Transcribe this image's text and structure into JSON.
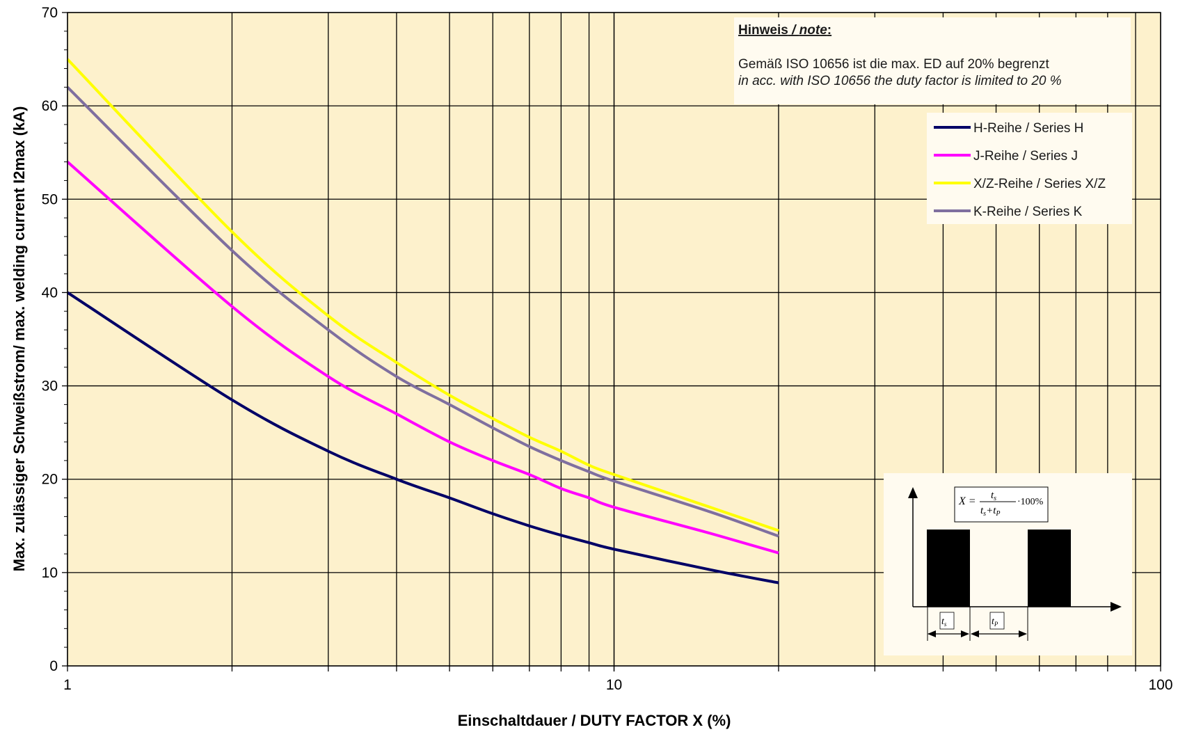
{
  "chart_data": {
    "type": "line",
    "xscale": "log",
    "xlim": [
      1,
      100
    ],
    "ylim": [
      0,
      70
    ],
    "xticks": [
      1,
      10,
      100
    ],
    "yticks": [
      0,
      10,
      20,
      30,
      40,
      50,
      60,
      70
    ],
    "grid": true,
    "xlabel": "Einschaltdauer / DUTY FACTOR X  (%)",
    "ylabel": "Max. zulässiger  Schweißstrom/ max. welding current I2max (kA)",
    "series": [
      {
        "name": "H-Reihe / Series H",
        "color": "#000066",
        "x": [
          1,
          2,
          3,
          4,
          5,
          6,
          7,
          8,
          9,
          10,
          15,
          20
        ],
        "y": [
          40,
          28.5,
          23,
          20,
          18,
          16.3,
          15,
          14,
          13.2,
          12.5,
          10.3,
          8.9
        ]
      },
      {
        "name": "J-Reihe / Series J",
        "color": "#ff00ff",
        "x": [
          1,
          2,
          3,
          4,
          5,
          6,
          7,
          8,
          9,
          10,
          15,
          20
        ],
        "y": [
          54,
          38.5,
          31,
          27,
          24,
          22,
          20.5,
          19,
          18,
          17,
          14.2,
          12.1
        ]
      },
      {
        "name": "X/Z-Reihe / Series X/Z",
        "color": "#ffff00",
        "x": [
          1,
          2,
          3,
          4,
          5,
          6,
          7,
          8,
          9,
          10,
          15,
          20
        ],
        "y": [
          65,
          46.5,
          37.5,
          32.5,
          29,
          26.5,
          24.5,
          23,
          21.5,
          20.5,
          17,
          14.5
        ]
      },
      {
        "name": "K-Reihe / Series K",
        "color": "#7f6f9f",
        "x": [
          1,
          2,
          3,
          4,
          5,
          6,
          7,
          8,
          9,
          10,
          15,
          20
        ],
        "y": [
          62,
          44.5,
          36,
          31,
          28,
          25.5,
          23.5,
          22,
          20.8,
          19.8,
          16.5,
          13.9
        ]
      }
    ],
    "legend_position": "top-right"
  },
  "note": {
    "title_prefix": "Hinweis",
    "title_separator": " / ",
    "title_suffix": "note",
    "title_colon": ":",
    "line_de": "Gemäß  ISO 10656 ist die max. ED auf 20% begrenzt",
    "line_en": "in acc.  with ISO 10656   the duty factor is limited to 20 %"
  },
  "diagram": {
    "formula_lhs": "X =",
    "numerator": "t",
    "numerator_sub": "s",
    "denominator_1": "t",
    "denominator_1_sub": "s",
    "denominator_plus": "+",
    "denominator_2": "t",
    "denominator_2_sub": "P",
    "formula_tail": "·100%",
    "label_ts": "t",
    "label_ts_sub": "s",
    "label_tp": "t",
    "label_tp_sub": "P"
  },
  "colors": {
    "plot_background": "#fdf1cc",
    "grid": "#000000",
    "box_background": "#fffbf0"
  }
}
